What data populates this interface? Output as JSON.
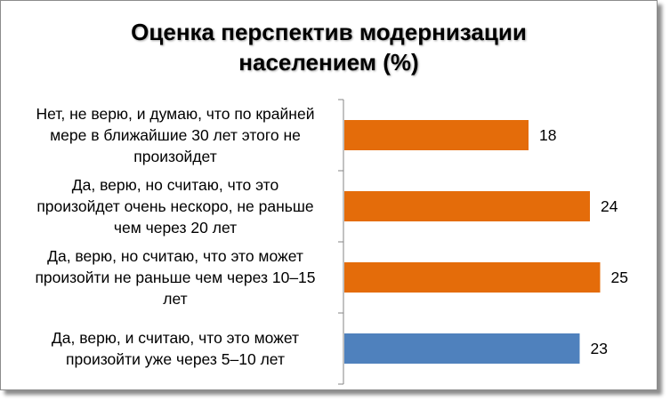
{
  "chart_data": {
    "type": "bar",
    "orientation": "horizontal",
    "title_lines": [
      "Оценка перспектив модернизации",
      "населением (%)"
    ],
    "categories": [
      "Нет, не верю, и думаю, что по крайней мере в ближайшие 30 лет этого не произойдет",
      "Да, верю, но считаю, что это произойдет очень нескоро, не раньше чем через 20 лет",
      "Да, верю, но считаю, что это может произойти не раньше чем через 10–15 лет",
      "Да, верю, и считаю, что это может произойти уже через 5–10 лет"
    ],
    "category_label_lines": [
      [
        "Нет, не верю, и думаю, что по крайней",
        "мере в ближайшие 30 лет этого не",
        "произойдет"
      ],
      [
        "Да, верю, но считаю, что это",
        "произойдет очень нескоро, не раньше",
        "чем через 20 лет"
      ],
      [
        "Да, верю, но считаю, что это может",
        "произойти не раньше чем через 10–15",
        "лет"
      ],
      [
        "Да, верю, и считаю, что это может",
        "произойти уже через 5–10 лет"
      ]
    ],
    "values": [
      18,
      24,
      25,
      23
    ],
    "data_labels": [
      "18",
      "24",
      "25",
      "23"
    ],
    "bar_colors": [
      "#E46C0A",
      "#E46C0A",
      "#E46C0A",
      "#4F81BD"
    ],
    "xlim": [
      0,
      30
    ],
    "grid": false,
    "legend": "none"
  }
}
